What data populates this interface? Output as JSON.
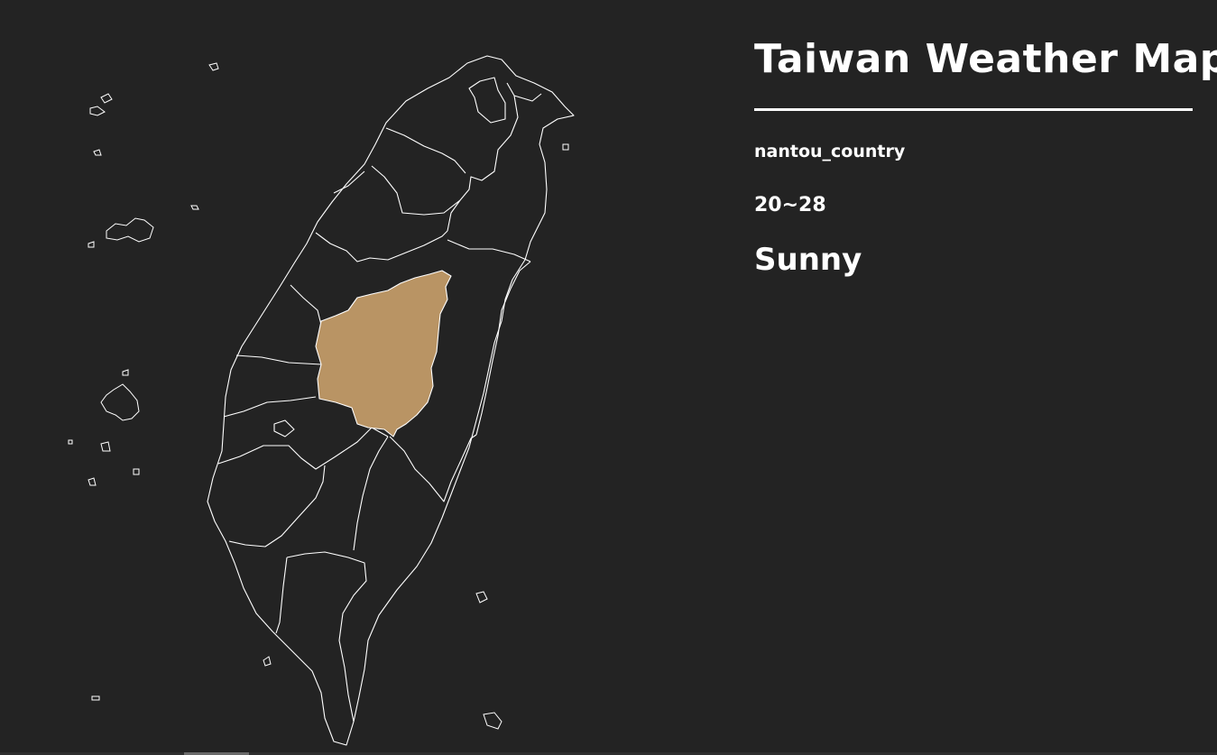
{
  "title": "Taiwan Weather Map",
  "selected": {
    "county": "nantou_country",
    "temperature": "20~28",
    "weather": "Sunny"
  },
  "colors": {
    "background": "#232323",
    "highlight": "#b99464",
    "outline": "#ffffff"
  }
}
